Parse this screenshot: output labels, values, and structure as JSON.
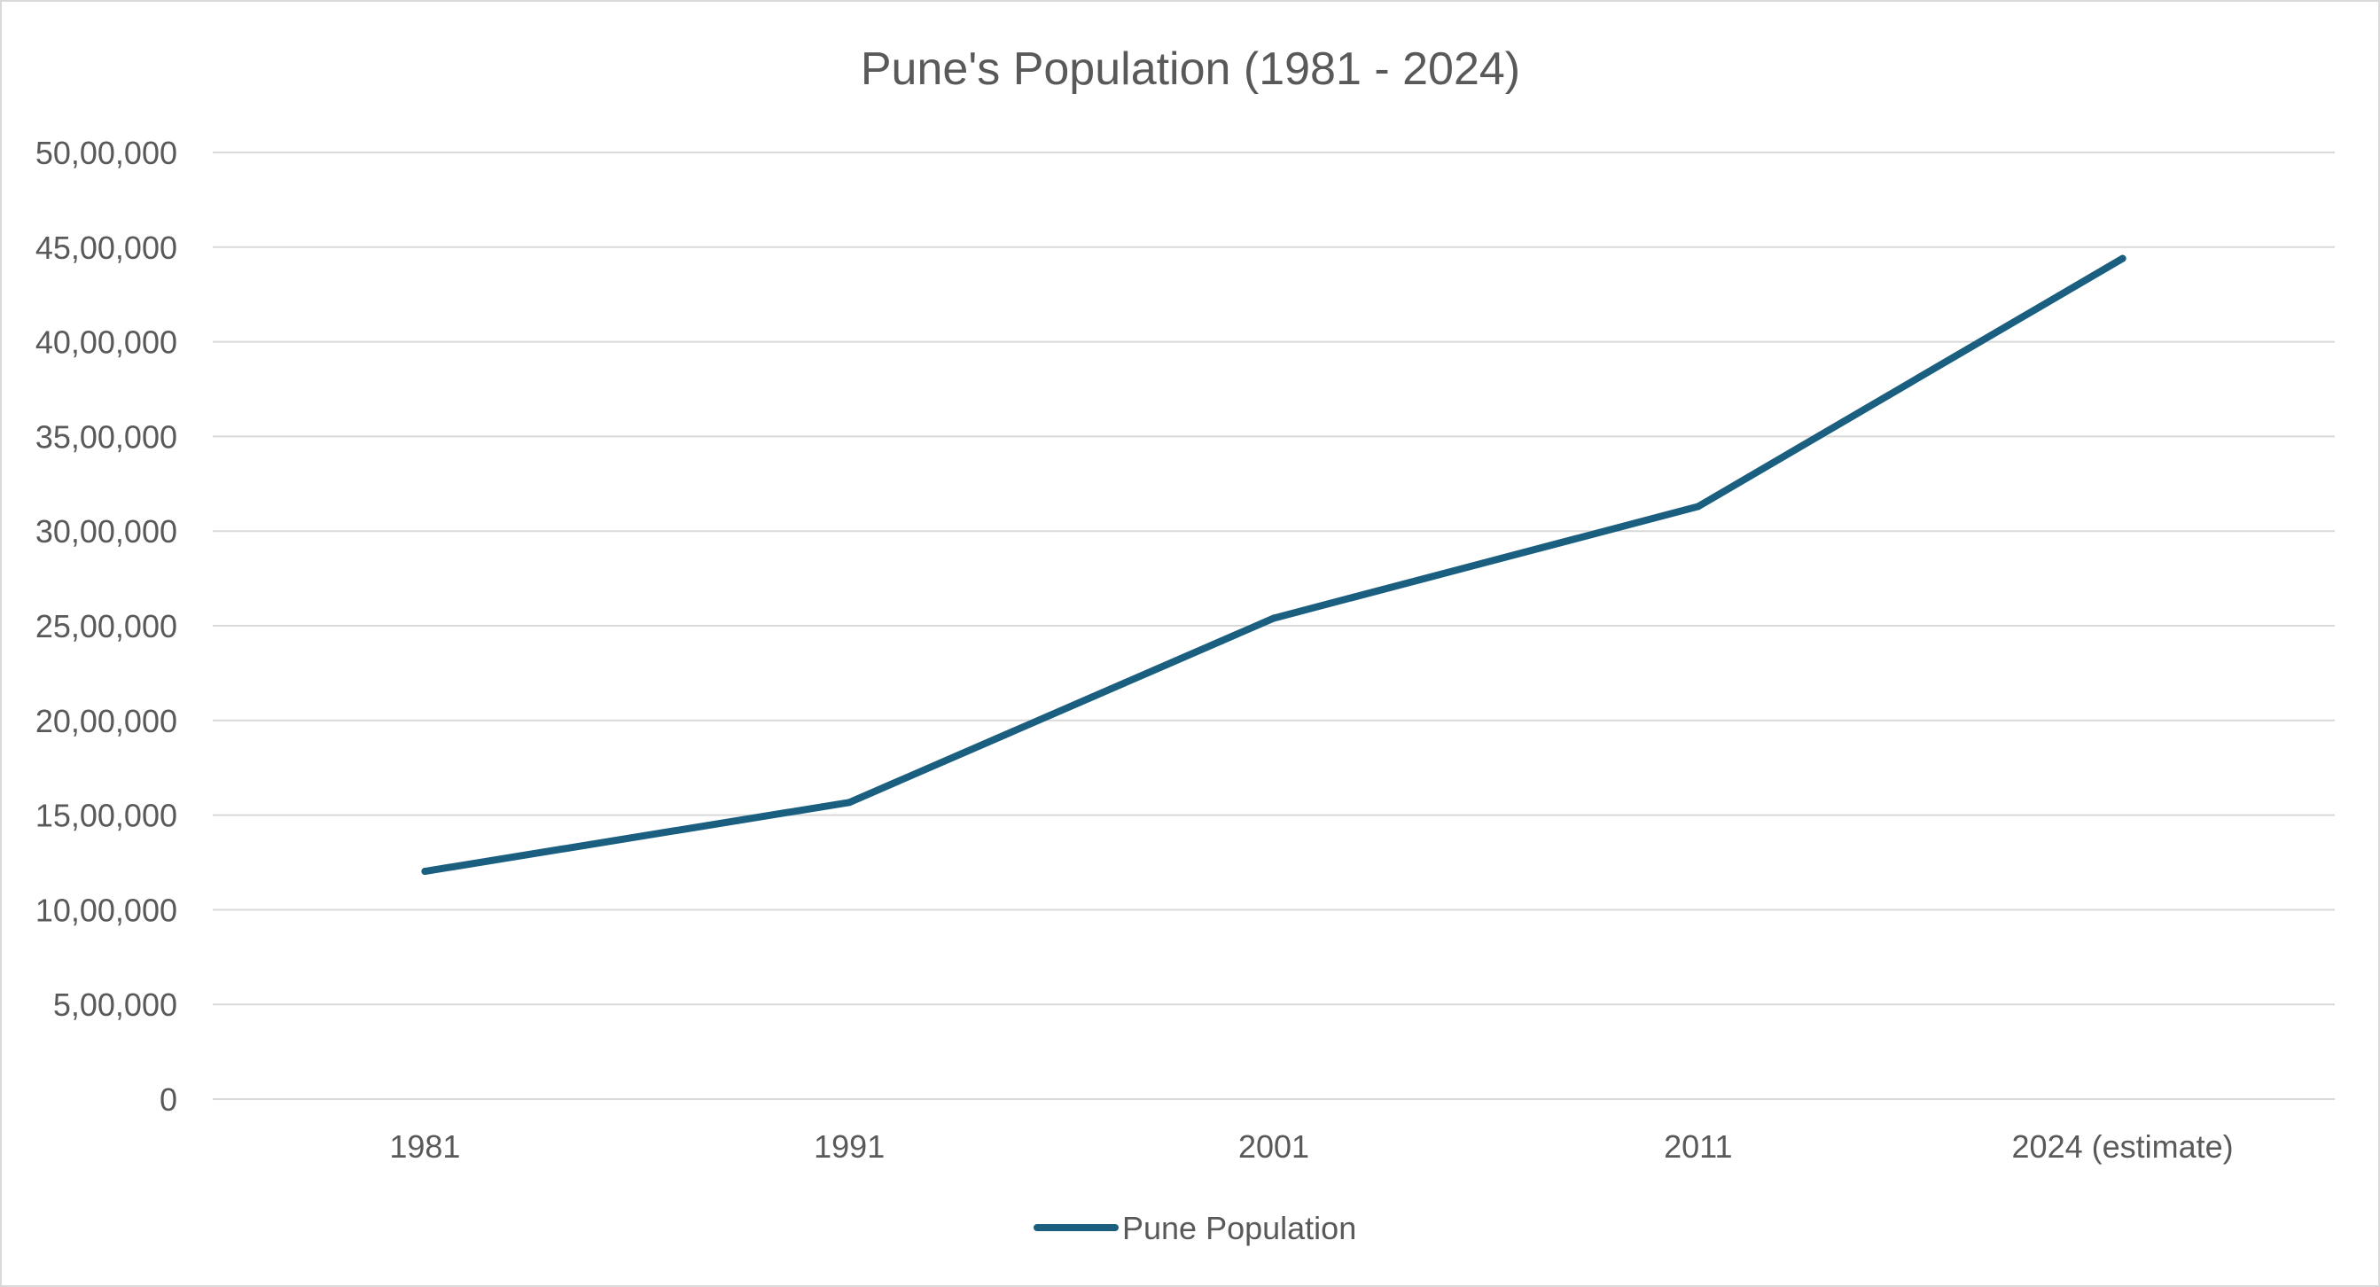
{
  "chart_data": {
    "type": "line",
    "title": "Pune's Population (1981 - 2024)",
    "xlabel": "",
    "ylabel": "",
    "categories": [
      "1981",
      "1991",
      "2001",
      "2011",
      "2024 (estimate)"
    ],
    "series": [
      {
        "name": "Pune Population",
        "values": [
          1203000,
          1567000,
          2540000,
          3130000,
          4440000
        ],
        "color": "#1a5f80"
      }
    ],
    "ylim": [
      0,
      5000000
    ],
    "y_ticks": [
      {
        "value": 0,
        "label": "0"
      },
      {
        "value": 500000,
        "label": "5,00,000"
      },
      {
        "value": 1000000,
        "label": "10,00,000"
      },
      {
        "value": 1500000,
        "label": "15,00,000"
      },
      {
        "value": 2000000,
        "label": "20,00,000"
      },
      {
        "value": 2500000,
        "label": "25,00,000"
      },
      {
        "value": 3000000,
        "label": "30,00,000"
      },
      {
        "value": 3500000,
        "label": "35,00,000"
      },
      {
        "value": 4000000,
        "label": "40,00,000"
      },
      {
        "value": 4500000,
        "label": "45,00,000"
      },
      {
        "value": 5000000,
        "label": "50,00,000"
      }
    ],
    "grid": true,
    "legend_position": "bottom",
    "colors": {
      "gridline": "#d9d9d9",
      "axis_text": "#595959",
      "title_text": "#595959",
      "frame": "#d9d9d9"
    }
  }
}
